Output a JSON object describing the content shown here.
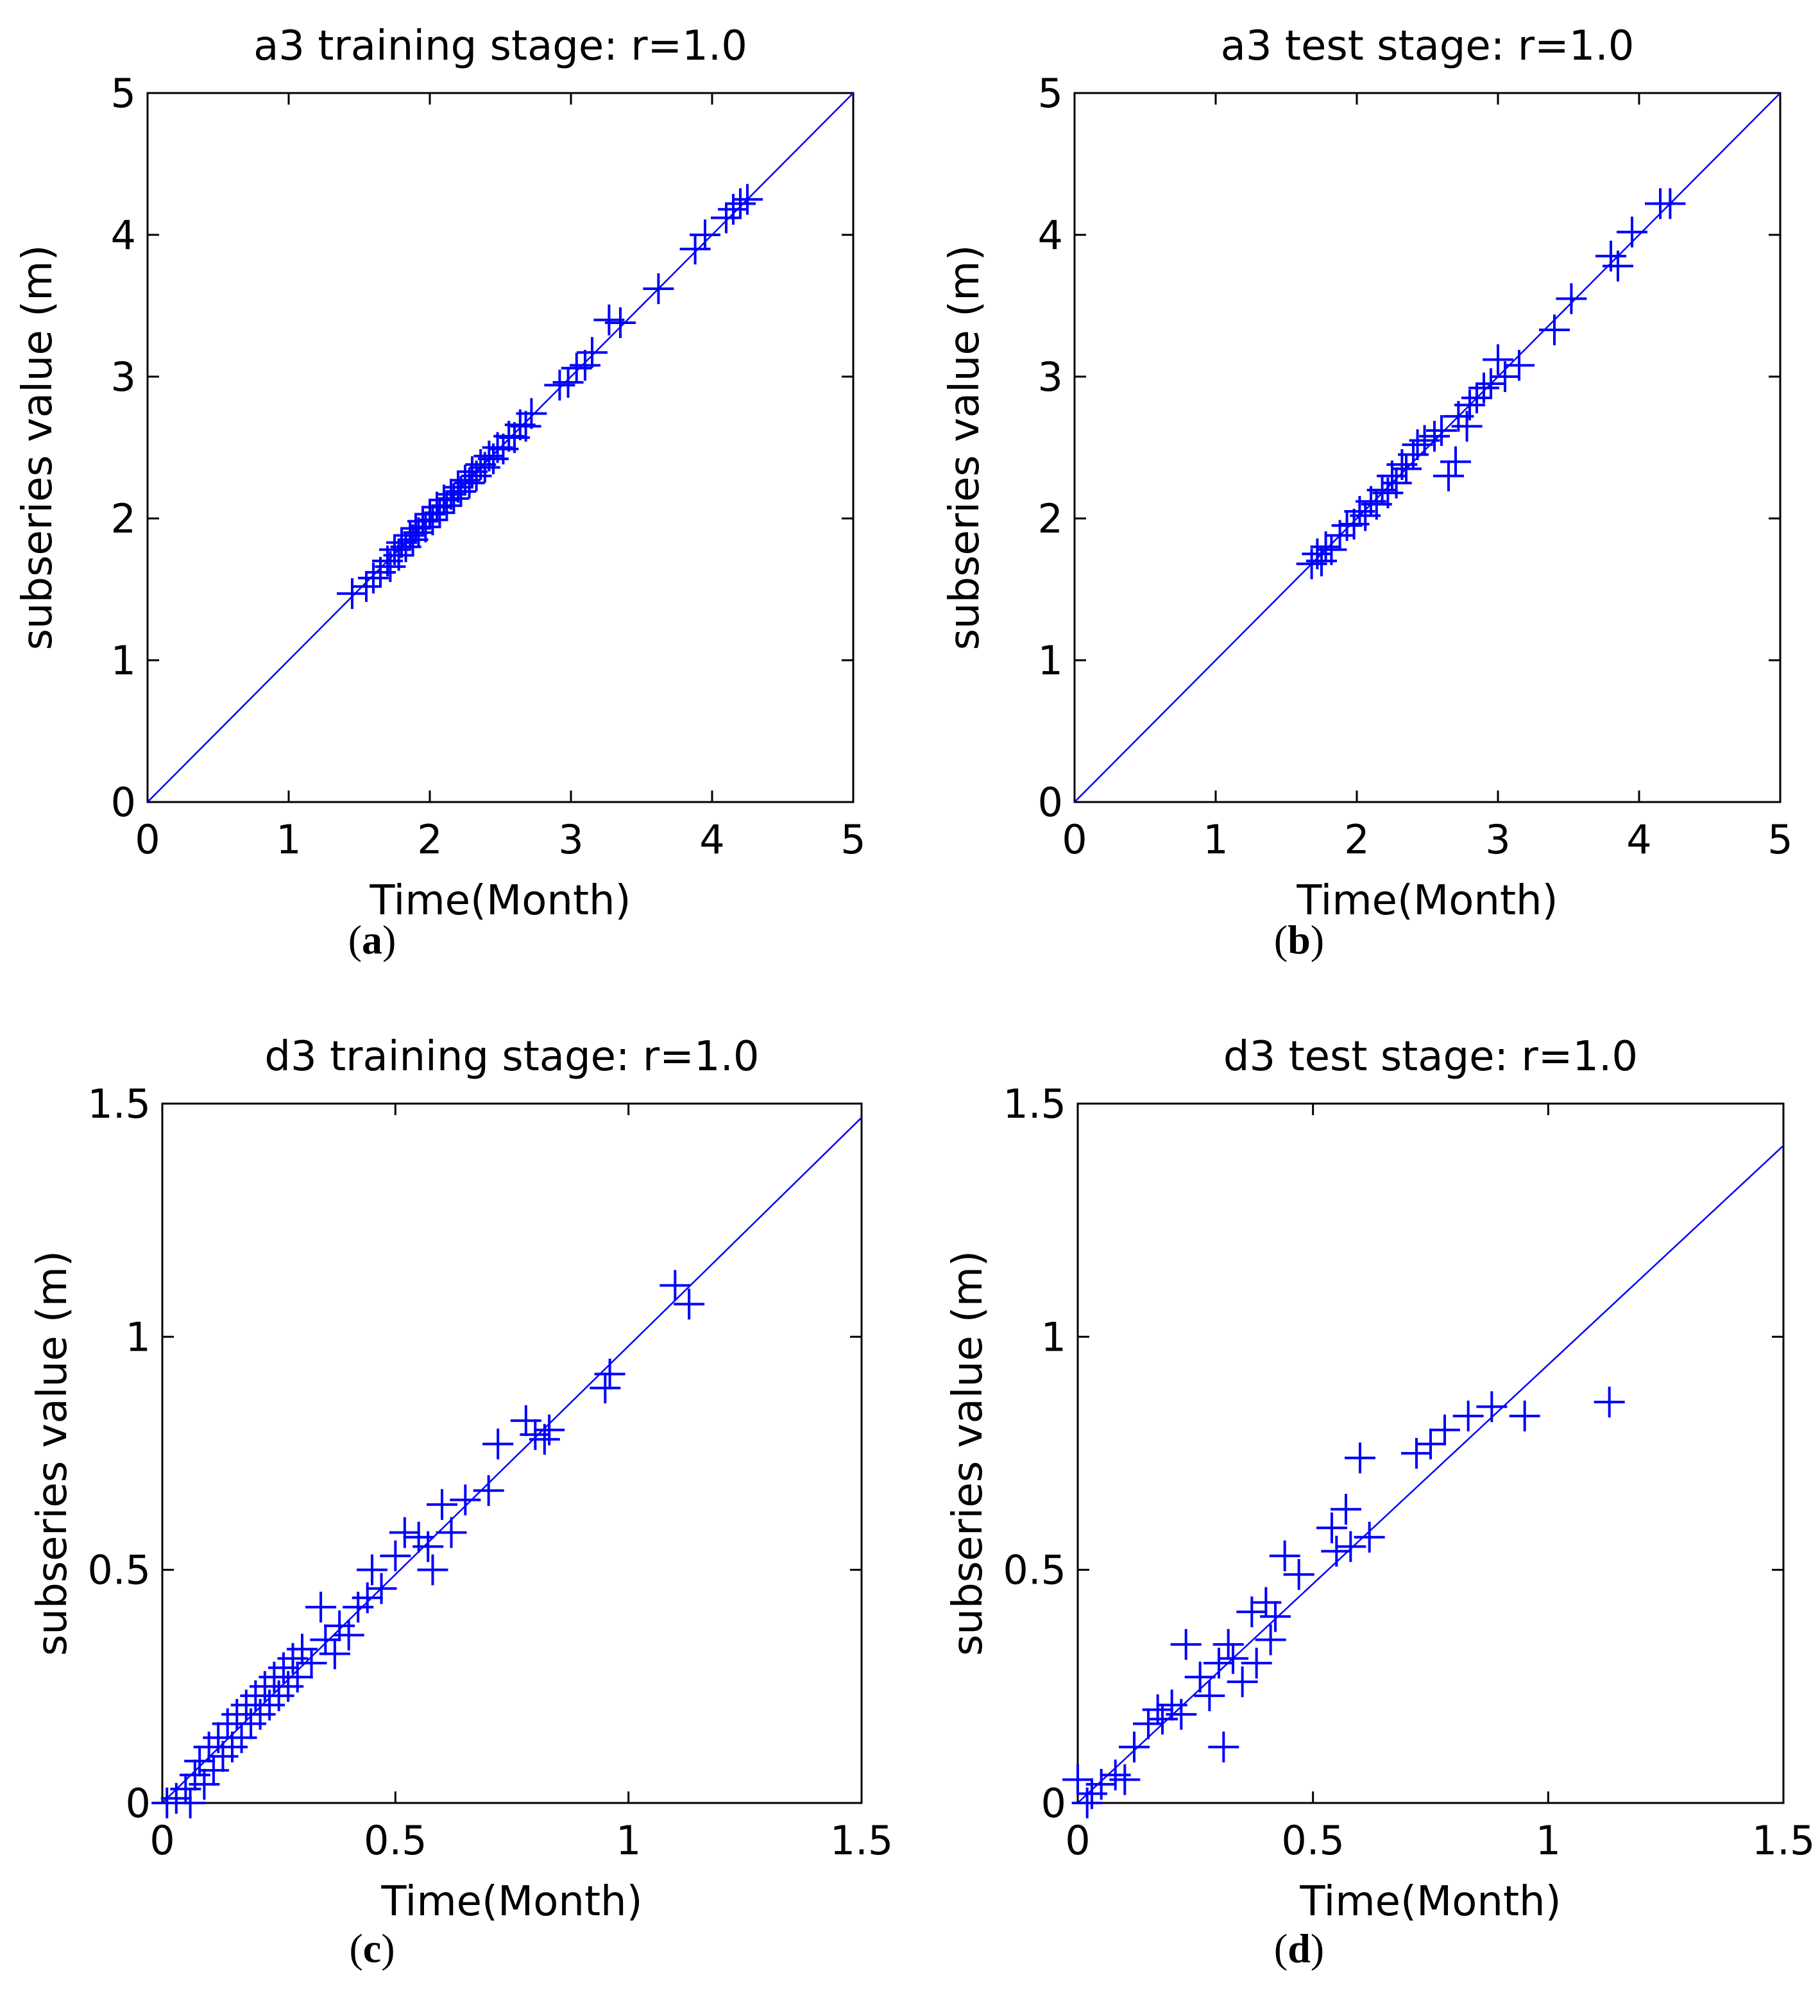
{
  "colors": {
    "series": "#0000ff",
    "axis": "#000000",
    "background": "#ffffff"
  },
  "chart_data": [
    {
      "id": "a",
      "panel_label": "a",
      "type": "scatter",
      "title": "a3 training stage: r=1.0",
      "xlabel": "Time(Month)",
      "ylabel": "subseries value (m)",
      "xlim": [
        0,
        5
      ],
      "ylim": [
        0,
        5
      ],
      "xticks": [
        0,
        1,
        2,
        3,
        4,
        5
      ],
      "yticks": [
        0,
        1,
        2,
        3,
        4,
        5
      ],
      "tick_labels_x": [
        "0",
        "1",
        "2",
        "3",
        "4",
        "5"
      ],
      "tick_labels_y": [
        "0",
        "1",
        "2",
        "3",
        "4",
        "5"
      ],
      "fit_line": {
        "x": [
          0,
          5
        ],
        "y": [
          0,
          5
        ]
      },
      "series": [
        {
          "name": "training",
          "marker": "+",
          "points": [
            [
              1.45,
              1.47
            ],
            [
              1.55,
              1.52
            ],
            [
              1.6,
              1.58
            ],
            [
              1.65,
              1.62
            ],
            [
              1.7,
              1.7
            ],
            [
              1.72,
              1.66
            ],
            [
              1.75,
              1.78
            ],
            [
              1.78,
              1.74
            ],
            [
              1.8,
              1.83
            ],
            [
              1.83,
              1.8
            ],
            [
              1.86,
              1.88
            ],
            [
              1.88,
              1.85
            ],
            [
              1.9,
              1.93
            ],
            [
              1.92,
              1.9
            ],
            [
              1.95,
              1.98
            ],
            [
              1.97,
              1.94
            ],
            [
              2.0,
              2.03
            ],
            [
              2.02,
              1.99
            ],
            [
              2.05,
              2.08
            ],
            [
              2.07,
              2.04
            ],
            [
              2.1,
              2.13
            ],
            [
              2.12,
              2.09
            ],
            [
              2.15,
              2.17
            ],
            [
              2.17,
              2.14
            ],
            [
              2.2,
              2.22
            ],
            [
              2.22,
              2.19
            ],
            [
              2.25,
              2.27
            ],
            [
              2.28,
              2.25
            ],
            [
              2.3,
              2.33
            ],
            [
              2.33,
              2.3
            ],
            [
              2.36,
              2.38
            ],
            [
              2.39,
              2.36
            ],
            [
              2.42,
              2.44
            ],
            [
              2.45,
              2.42
            ],
            [
              2.48,
              2.5
            ],
            [
              2.52,
              2.49
            ],
            [
              2.56,
              2.58
            ],
            [
              2.6,
              2.57
            ],
            [
              2.64,
              2.66
            ],
            [
              2.68,
              2.65
            ],
            [
              2.72,
              2.74
            ],
            [
              2.92,
              2.94
            ],
            [
              2.98,
              2.96
            ],
            [
              3.04,
              3.06
            ],
            [
              3.1,
              3.08
            ],
            [
              3.15,
              3.17
            ],
            [
              3.27,
              3.4
            ],
            [
              3.35,
              3.38
            ],
            [
              3.62,
              3.62
            ],
            [
              3.88,
              3.9
            ],
            [
              3.95,
              4.0
            ],
            [
              4.1,
              4.12
            ],
            [
              4.15,
              4.18
            ],
            [
              4.2,
              4.22
            ],
            [
              4.25,
              4.25
            ]
          ]
        }
      ]
    },
    {
      "id": "b",
      "panel_label": "b",
      "type": "scatter",
      "title": "a3 test stage: r=1.0",
      "xlabel": "Time(Month)",
      "ylabel": "subseries value (m)",
      "xlim": [
        0,
        5
      ],
      "ylim": [
        0,
        5
      ],
      "xticks": [
        0,
        1,
        2,
        3,
        4,
        5
      ],
      "yticks": [
        0,
        1,
        2,
        3,
        4,
        5
      ],
      "tick_labels_x": [
        "0",
        "1",
        "2",
        "3",
        "4",
        "5"
      ],
      "tick_labels_y": [
        "0",
        "1",
        "2",
        "3",
        "4",
        "5"
      ],
      "fit_line": {
        "x": [
          0,
          5
        ],
        "y": [
          0,
          5
        ]
      },
      "series": [
        {
          "name": "test",
          "marker": "+",
          "points": [
            [
              1.68,
              1.68
            ],
            [
              1.72,
              1.75
            ],
            [
              1.75,
              1.7
            ],
            [
              1.78,
              1.8
            ],
            [
              1.82,
              1.78
            ],
            [
              1.88,
              1.88
            ],
            [
              1.93,
              1.95
            ],
            [
              1.98,
              1.96
            ],
            [
              2.02,
              2.05
            ],
            [
              2.06,
              2.02
            ],
            [
              2.1,
              2.12
            ],
            [
              2.14,
              2.1
            ],
            [
              2.18,
              2.2
            ],
            [
              2.22,
              2.18
            ],
            [
              2.25,
              2.3
            ],
            [
              2.28,
              2.25
            ],
            [
              2.32,
              2.38
            ],
            [
              2.35,
              2.35
            ],
            [
              2.4,
              2.45
            ],
            [
              2.43,
              2.52
            ],
            [
              2.48,
              2.55
            ],
            [
              2.55,
              2.58
            ],
            [
              2.6,
              2.62
            ],
            [
              2.65,
              2.3
            ],
            [
              2.7,
              2.4
            ],
            [
              2.72,
              2.72
            ],
            [
              2.78,
              2.65
            ],
            [
              2.8,
              2.8
            ],
            [
              2.85,
              2.85
            ],
            [
              2.9,
              2.92
            ],
            [
              2.95,
              2.95
            ],
            [
              3.0,
              3.12
            ],
            [
              3.05,
              3.0
            ],
            [
              3.15,
              3.08
            ],
            [
              3.4,
              3.33
            ],
            [
              3.52,
              3.55
            ],
            [
              3.8,
              3.85
            ],
            [
              3.85,
              3.78
            ],
            [
              3.95,
              4.02
            ],
            [
              4.15,
              4.22
            ],
            [
              4.22,
              4.22
            ]
          ]
        }
      ]
    },
    {
      "id": "c",
      "panel_label": "c",
      "type": "scatter",
      "title": "d3 training stage: r=1.0",
      "xlabel": "Time(Month)",
      "ylabel": "subseries value (m)",
      "xlim": [
        0,
        1.5
      ],
      "ylim": [
        0,
        1.5
      ],
      "xticks": [
        0,
        0.5,
        1,
        1.5
      ],
      "yticks": [
        0,
        0.5,
        1,
        1.5
      ],
      "tick_labels_x": [
        "0",
        "0.5",
        "1",
        "1.5"
      ],
      "tick_labels_y": [
        "0",
        "0.5",
        "1",
        "1.5"
      ],
      "fit_line": {
        "x": [
          0,
          1.5
        ],
        "y": [
          0,
          1.47
        ]
      },
      "series": [
        {
          "name": "training",
          "marker": "+",
          "points": [
            [
              0.01,
              0.0
            ],
            [
              0.03,
              0.01
            ],
            [
              0.05,
              0.03
            ],
            [
              0.06,
              0.0
            ],
            [
              0.07,
              0.06
            ],
            [
              0.08,
              0.09
            ],
            [
              0.09,
              0.04
            ],
            [
              0.1,
              0.12
            ],
            [
              0.11,
              0.07
            ],
            [
              0.12,
              0.14
            ],
            [
              0.13,
              0.1
            ],
            [
              0.14,
              0.17
            ],
            [
              0.15,
              0.12
            ],
            [
              0.16,
              0.19
            ],
            [
              0.17,
              0.14
            ],
            [
              0.18,
              0.21
            ],
            [
              0.19,
              0.17
            ],
            [
              0.2,
              0.23
            ],
            [
              0.21,
              0.19
            ],
            [
              0.22,
              0.25
            ],
            [
              0.23,
              0.21
            ],
            [
              0.24,
              0.27
            ],
            [
              0.25,
              0.23
            ],
            [
              0.26,
              0.29
            ],
            [
              0.27,
              0.25
            ],
            [
              0.28,
              0.31
            ],
            [
              0.29,
              0.27
            ],
            [
              0.3,
              0.33
            ],
            [
              0.32,
              0.3
            ],
            [
              0.34,
              0.42
            ],
            [
              0.35,
              0.35
            ],
            [
              0.37,
              0.32
            ],
            [
              0.38,
              0.38
            ],
            [
              0.4,
              0.36
            ],
            [
              0.42,
              0.42
            ],
            [
              0.44,
              0.44
            ],
            [
              0.45,
              0.5
            ],
            [
              0.47,
              0.46
            ],
            [
              0.5,
              0.53
            ],
            [
              0.52,
              0.58
            ],
            [
              0.55,
              0.57
            ],
            [
              0.57,
              0.55
            ],
            [
              0.58,
              0.5
            ],
            [
              0.6,
              0.64
            ],
            [
              0.62,
              0.58
            ],
            [
              0.65,
              0.65
            ],
            [
              0.7,
              0.67
            ],
            [
              0.72,
              0.77
            ],
            [
              0.78,
              0.82
            ],
            [
              0.8,
              0.79
            ],
            [
              0.82,
              0.78
            ],
            [
              0.83,
              0.8
            ],
            [
              0.95,
              0.89
            ],
            [
              0.96,
              0.92
            ],
            [
              1.1,
              1.11
            ],
            [
              1.13,
              1.07
            ]
          ]
        }
      ]
    },
    {
      "id": "d",
      "panel_label": "d",
      "type": "scatter",
      "title": "d3 test stage: r=1.0",
      "xlabel": "Time(Month)",
      "ylabel": "subseries value (m)",
      "xlim": [
        0,
        1.5
      ],
      "ylim": [
        0,
        1.5
      ],
      "xticks": [
        0,
        0.5,
        1,
        1.5
      ],
      "yticks": [
        0,
        0.5,
        1,
        1.5
      ],
      "tick_labels_x": [
        "0",
        "0.5",
        "1",
        "1.5"
      ],
      "tick_labels_y": [
        "0",
        "0.5",
        "1",
        "1.5"
      ],
      "fit_line": {
        "x": [
          0,
          1.5
        ],
        "y": [
          0,
          1.41
        ]
      },
      "series": [
        {
          "name": "test",
          "marker": "+",
          "points": [
            [
              0.0,
              0.05
            ],
            [
              0.02,
              0.0
            ],
            [
              0.03,
              0.02
            ],
            [
              0.05,
              0.04
            ],
            [
              0.08,
              0.06
            ],
            [
              0.1,
              0.05
            ],
            [
              0.12,
              0.12
            ],
            [
              0.15,
              0.17
            ],
            [
              0.17,
              0.2
            ],
            [
              0.18,
              0.18
            ],
            [
              0.2,
              0.21
            ],
            [
              0.22,
              0.19
            ],
            [
              0.23,
              0.34
            ],
            [
              0.26,
              0.27
            ],
            [
              0.28,
              0.23
            ],
            [
              0.3,
              0.3
            ],
            [
              0.31,
              0.12
            ],
            [
              0.32,
              0.34
            ],
            [
              0.33,
              0.31
            ],
            [
              0.35,
              0.26
            ],
            [
              0.37,
              0.41
            ],
            [
              0.38,
              0.3
            ],
            [
              0.4,
              0.43
            ],
            [
              0.41,
              0.35
            ],
            [
              0.42,
              0.4
            ],
            [
              0.44,
              0.53
            ],
            [
              0.47,
              0.49
            ],
            [
              0.54,
              0.59
            ],
            [
              0.55,
              0.54
            ],
            [
              0.57,
              0.63
            ],
            [
              0.58,
              0.55
            ],
            [
              0.6,
              0.74
            ],
            [
              0.62,
              0.57
            ],
            [
              0.72,
              0.75
            ],
            [
              0.75,
              0.77
            ],
            [
              0.78,
              0.8
            ],
            [
              0.83,
              0.83
            ],
            [
              0.88,
              0.85
            ],
            [
              0.95,
              0.83
            ],
            [
              1.13,
              0.86
            ]
          ]
        }
      ]
    }
  ]
}
